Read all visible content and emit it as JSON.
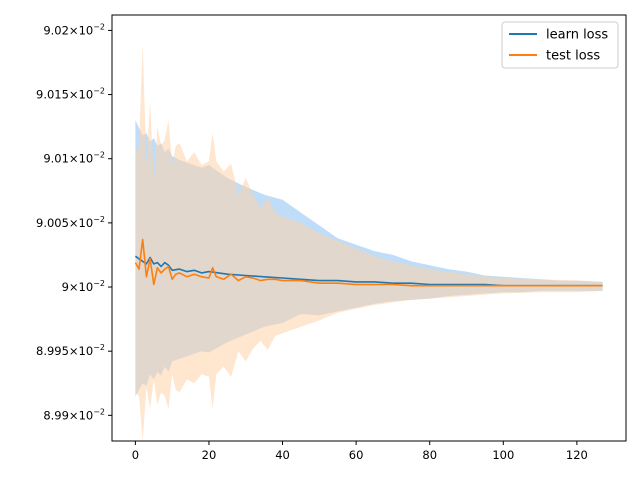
{
  "chart_data": {
    "type": "line",
    "title": "",
    "xlabel": "",
    "ylabel": "",
    "xlim": [
      -6.35,
      133.35
    ],
    "ylim": [
      0.08988,
      0.090212
    ],
    "x_ticks": [
      0,
      20,
      40,
      60,
      80,
      100,
      120
    ],
    "x_tick_labels": [
      "0",
      "20",
      "40",
      "60",
      "80",
      "100",
      "120"
    ],
    "y_ticks": [
      0.0899,
      0.08995,
      0.09,
      0.09005,
      0.0901,
      0.09015,
      0.0902
    ],
    "y_tick_labels": [
      {
        "mantissa": "8.99",
        "base": "10",
        "exp": "−2"
      },
      {
        "mantissa": "8.995",
        "base": "10",
        "exp": "−2"
      },
      {
        "mantissa": "9",
        "base": "10",
        "exp": "−2"
      },
      {
        "mantissa": "9.005",
        "base": "10",
        "exp": "−2"
      },
      {
        "mantissa": "9.01",
        "base": "10",
        "exp": "−2"
      },
      {
        "mantissa": "9.015",
        "base": "10",
        "exp": "−2"
      },
      {
        "mantissa": "9.02",
        "base": "10",
        "exp": "−2"
      }
    ],
    "legend_position": "top-right",
    "series": [
      {
        "name": "learn loss",
        "color": "#1f77b4",
        "band_color": "#a9d2f7",
        "x": [
          0,
          1,
          2,
          3,
          4,
          5,
          6,
          7,
          8,
          9,
          10,
          12,
          14,
          16,
          18,
          20,
          25,
          30,
          35,
          40,
          45,
          50,
          55,
          60,
          65,
          70,
          75,
          80,
          85,
          90,
          95,
          100,
          105,
          110,
          115,
          120,
          127
        ],
        "y": [
          0.090024,
          0.090022,
          0.09002,
          0.090018,
          0.090023,
          0.090018,
          0.090019,
          0.090016,
          0.090019,
          0.090017,
          0.090013,
          0.090014,
          0.090012,
          0.090013,
          0.090011,
          0.090012,
          0.09001,
          0.090009,
          0.090008,
          0.090007,
          0.090006,
          0.090005,
          0.090005,
          0.090004,
          0.090004,
          0.090003,
          0.090003,
          0.090002,
          0.090002,
          0.090002,
          0.090002,
          0.090001,
          0.090001,
          0.090001,
          0.090001,
          0.090001,
          0.090001
        ],
        "upper": [
          0.09013,
          0.090124,
          0.090118,
          0.09012,
          0.090113,
          0.090116,
          0.09011,
          0.090112,
          0.090105,
          0.090108,
          0.090102,
          0.090099,
          0.090097,
          0.090095,
          0.090093,
          0.090095,
          0.090085,
          0.090078,
          0.090072,
          0.090068,
          0.090058,
          0.090048,
          0.090038,
          0.090033,
          0.090028,
          0.090025,
          0.09002,
          0.090017,
          0.090014,
          0.090012,
          0.090009,
          0.090008,
          0.090007,
          0.090006,
          0.090005,
          0.090005,
          0.090004
        ],
        "lower": [
          0.089915,
          0.08992,
          0.089925,
          0.089923,
          0.089932,
          0.089928,
          0.089934,
          0.089931,
          0.089938,
          0.089934,
          0.089942,
          0.089944,
          0.089946,
          0.089948,
          0.08995,
          0.089949,
          0.089957,
          0.089963,
          0.089969,
          0.089972,
          0.089979,
          0.089978,
          0.089981,
          0.089984,
          0.089987,
          0.089989,
          0.08999,
          0.089991,
          0.089993,
          0.089994,
          0.089995,
          0.089996,
          0.089996,
          0.089997,
          0.089997,
          0.089997,
          0.089997
        ]
      },
      {
        "name": "test loss",
        "color": "#ff7f0e",
        "band_color": "#fdd2a8",
        "x": [
          0,
          1,
          2,
          3,
          4,
          5,
          6,
          7,
          8,
          9,
          10,
          11,
          12,
          14,
          16,
          18,
          20,
          21,
          22,
          24,
          26,
          28,
          30,
          32,
          34,
          36,
          38,
          40,
          45,
          50,
          55,
          60,
          65,
          70,
          75,
          80,
          90,
          100,
          110,
          120,
          127
        ],
        "y": [
          0.090019,
          0.090014,
          0.090037,
          0.090008,
          0.090022,
          0.090002,
          0.090015,
          0.090011,
          0.090014,
          0.090016,
          0.090006,
          0.09001,
          0.090011,
          0.090008,
          0.09001,
          0.090008,
          0.090007,
          0.090015,
          0.090008,
          0.090006,
          0.09001,
          0.090005,
          0.090008,
          0.090007,
          0.090005,
          0.090006,
          0.090006,
          0.090005,
          0.090005,
          0.090003,
          0.090003,
          0.090002,
          0.090002,
          0.090002,
          0.090001,
          0.090001,
          0.090001,
          0.090001,
          0.090001,
          0.090001,
          0.090001
        ],
        "upper": [
          0.090105,
          0.09011,
          0.09019,
          0.090095,
          0.090145,
          0.09008,
          0.090125,
          0.09011,
          0.090115,
          0.09013,
          0.090095,
          0.09011,
          0.090112,
          0.090098,
          0.090105,
          0.090095,
          0.090098,
          0.09012,
          0.090098,
          0.09009,
          0.090096,
          0.090072,
          0.090085,
          0.090072,
          0.090062,
          0.09007,
          0.090058,
          0.090055,
          0.09005,
          0.090042,
          0.090036,
          0.09003,
          0.090024,
          0.09002,
          0.090017,
          0.090014,
          0.09001,
          0.090007,
          0.090006,
          0.090005,
          0.090004
        ],
        "lower": [
          0.089918,
          0.089915,
          0.08988,
          0.089922,
          0.089905,
          0.089928,
          0.089908,
          0.089918,
          0.089915,
          0.089905,
          0.089932,
          0.08992,
          0.089918,
          0.089928,
          0.089925,
          0.089932,
          0.08993,
          0.089905,
          0.089932,
          0.089938,
          0.08993,
          0.08995,
          0.089942,
          0.089952,
          0.089958,
          0.089951,
          0.089962,
          0.089964,
          0.089969,
          0.089974,
          0.08998,
          0.089983,
          0.089986,
          0.089988,
          0.08999,
          0.089991,
          0.089993,
          0.089995,
          0.089996,
          0.089996,
          0.089997
        ]
      }
    ]
  }
}
